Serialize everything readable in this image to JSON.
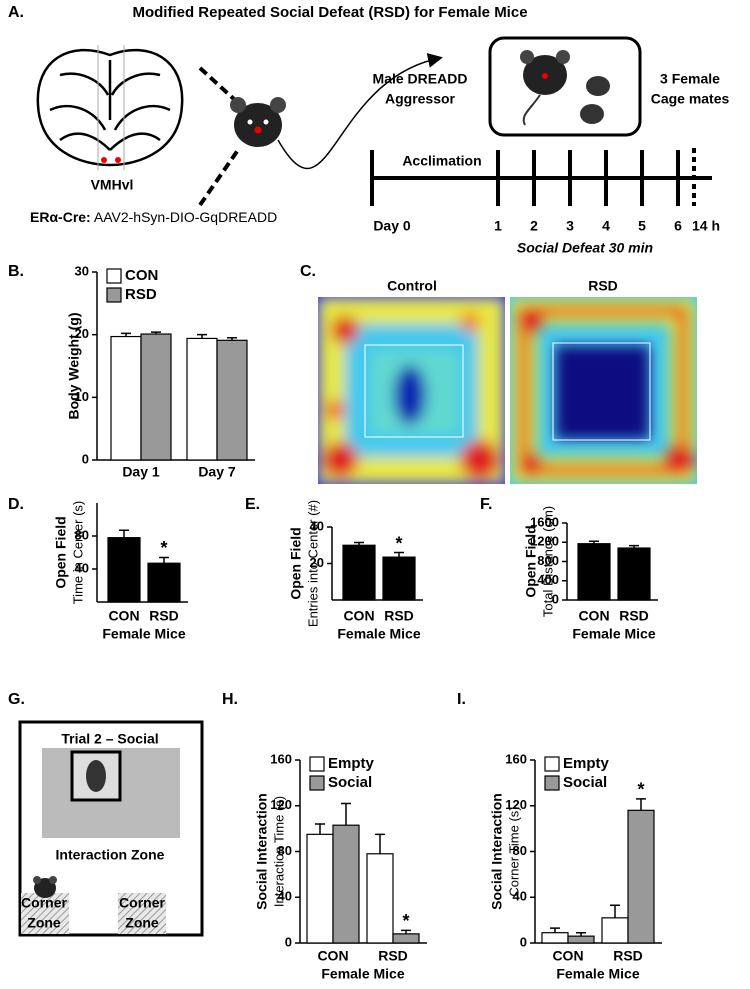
{
  "panel_a": {
    "panel": "A.",
    "title": "Modified Repeated Social Defeat (RSD) for Female Mice",
    "region": "VMHvl",
    "label_bold": "ERα-Cre:",
    "construct": "AAV2-hSyn-DIO-GqDREADD",
    "aggressor_1": "Male DREADD",
    "aggressor_2": "Aggressor",
    "cagemates_1": "3 Female",
    "cagemates_2": "Cage mates",
    "phase": "Acclimation",
    "start": "Day 0",
    "days": [
      "1",
      "2",
      "3",
      "4",
      "5",
      "6",
      "14 h"
    ],
    "protocol": "Social Defeat 30 min"
  },
  "panel_c": {
    "panel": "C.",
    "groups": [
      "Control",
      "RSD"
    ]
  },
  "panel_g": {
    "panel": "G.",
    "title": "Trial 2 – Social",
    "zone": "Interaction Zone",
    "corner_1": "Corner",
    "corner_2": "Zone"
  },
  "chart_data": [
    {
      "type": "bar",
      "panel": "B.",
      "ylabel": "Body Weight (g)",
      "categories": [
        "Day 1",
        "Day 7"
      ],
      "ylim": [
        0,
        30
      ],
      "yticks": [
        0,
        10,
        20,
        30
      ],
      "legend": "top-left",
      "series": [
        {
          "name": "CON",
          "color": "#ffffff",
          "values": [
            19.7,
            19.4
          ],
          "errors": [
            0.5,
            0.6
          ]
        },
        {
          "name": "RSD",
          "color": "#999999",
          "values": [
            20.1,
            19.1
          ],
          "errors": [
            0.3,
            0.4
          ]
        }
      ]
    },
    {
      "type": "bar",
      "panel": "D.",
      "ylabel_bold": "Open Field",
      "ylabel": "Time in Center (s)",
      "xlabel": "Female Mice",
      "categories": [
        "CON",
        "RSD"
      ],
      "values": [
        78,
        47
      ],
      "errors": [
        9,
        7
      ],
      "color": "#000000",
      "ylim": [
        0,
        120
      ],
      "yticks": [
        40,
        80
      ],
      "annotation": "*",
      "annotation_at": [
        1
      ]
    },
    {
      "type": "bar",
      "panel": "E.",
      "ylabel_bold": "Open Field",
      "ylabel": "Entries into Center (#)",
      "xlabel": "Female Mice",
      "categories": [
        "CON",
        "RSD"
      ],
      "values": [
        30,
        23.5
      ],
      "errors": [
        1.5,
        2.5
      ],
      "color": "#000000",
      "ylim": [
        0,
        40
      ],
      "yticks": [
        20,
        40
      ],
      "annotation": "*",
      "annotation_at": [
        1
      ]
    },
    {
      "type": "bar",
      "panel": "F.",
      "ylabel_bold": "Open Field",
      "ylabel": "Total Distance (cm)",
      "xlabel": "Female Mice",
      "categories": [
        "CON",
        "RSD"
      ],
      "values": [
        1170,
        1080
      ],
      "errors": [
        50,
        50
      ],
      "color": "#000000",
      "ylim": [
        0,
        1600
      ],
      "yticks": [
        0,
        400,
        800,
        1200,
        1600
      ]
    },
    {
      "type": "bar",
      "panel": "H.",
      "ylabel_bold": "Social Interaction",
      "ylabel": "Interaction Time (s)",
      "xlabel": "Female Mice",
      "categories": [
        "CON",
        "RSD"
      ],
      "ylim": [
        0,
        160
      ],
      "yticks": [
        0,
        40,
        80,
        120,
        160
      ],
      "legend": "top-left",
      "annotation": "*",
      "annotation_at": [
        1,
        1
      ],
      "series": [
        {
          "name": "Empty",
          "color": "#ffffff",
          "values": [
            95,
            78
          ],
          "errors": [
            9,
            17
          ]
        },
        {
          "name": "Social",
          "color": "#999999",
          "values": [
            103,
            8
          ],
          "errors": [
            19,
            3
          ]
        }
      ]
    },
    {
      "type": "bar",
      "panel": "I.",
      "ylabel_bold": "Social Interaction",
      "ylabel": "Corner Time (s)",
      "xlabel": "Female Mice",
      "categories": [
        "CON",
        "RSD"
      ],
      "ylim": [
        0,
        160
      ],
      "yticks": [
        0,
        40,
        80,
        120,
        160
      ],
      "legend": "top-left",
      "annotation": "*",
      "annotation_at": [
        1,
        1
      ],
      "series": [
        {
          "name": "Empty",
          "color": "#ffffff",
          "values": [
            9,
            22
          ],
          "errors": [
            4,
            11
          ]
        },
        {
          "name": "Social",
          "color": "#999999",
          "values": [
            6,
            116
          ],
          "errors": [
            3,
            10
          ]
        }
      ]
    }
  ]
}
